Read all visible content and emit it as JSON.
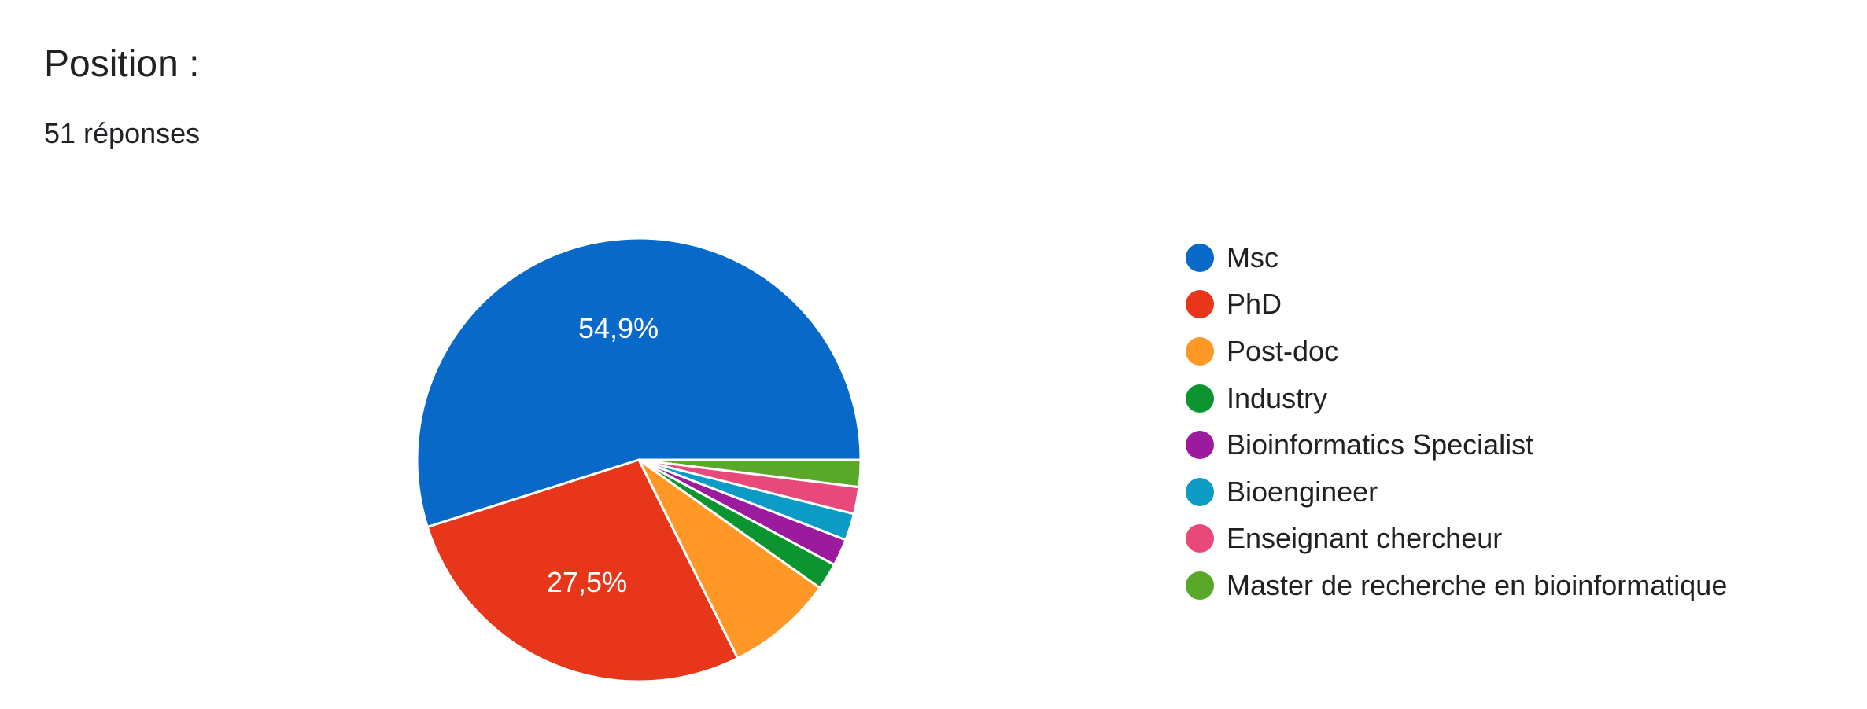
{
  "title": "Position :",
  "subtitle": "51 réponses",
  "chart_data": {
    "type": "pie",
    "total_responses": 51,
    "slices": [
      {
        "name": "Msc",
        "value": 28,
        "percent_label": "54,9%",
        "color": "#0869c9"
      },
      {
        "name": "PhD",
        "value": 14,
        "percent_label": "27,5%",
        "color": "#e8361b"
      },
      {
        "name": "Post-doc",
        "value": 4,
        "percent_label": "",
        "color": "#ff9827"
      },
      {
        "name": "Industry",
        "value": 1,
        "percent_label": "",
        "color": "#0c9430"
      },
      {
        "name": "Bioinformatics Specialist",
        "value": 1,
        "percent_label": "",
        "color": "#9b1a9d"
      },
      {
        "name": "Bioengineer",
        "value": 1,
        "percent_label": "",
        "color": "#0b9bc4"
      },
      {
        "name": "Enseignant chercheur",
        "value": 1,
        "percent_label": "",
        "color": "#e9497a"
      },
      {
        "name": "Master de recherche en bioinformatique",
        "value": 1,
        "percent_label": "",
        "color": "#5aa82a"
      }
    ],
    "legend_position": "right"
  }
}
